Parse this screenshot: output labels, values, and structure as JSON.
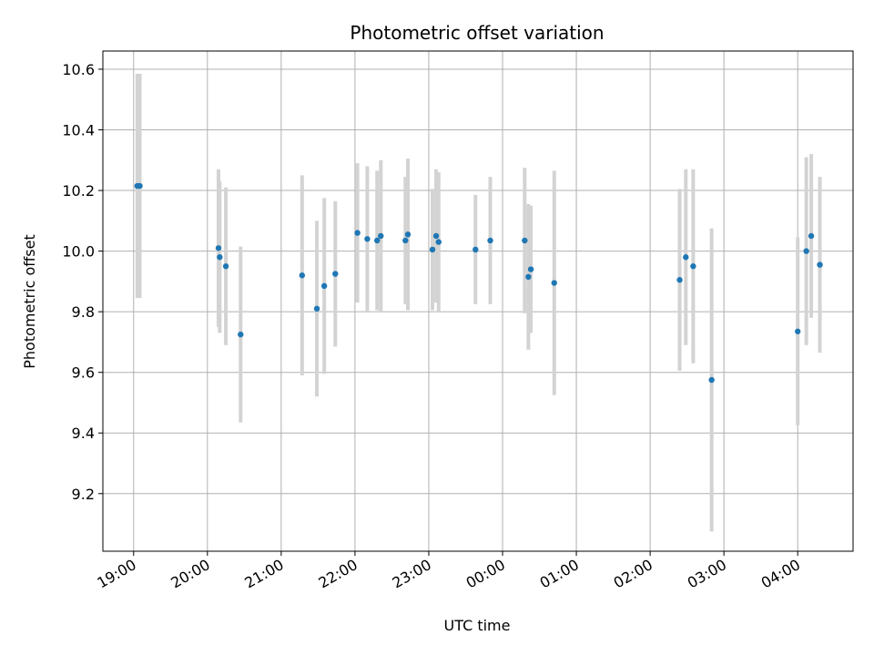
{
  "chart_data": {
    "type": "scatter",
    "title": "Photometric offset variation",
    "xlabel": "UTC time",
    "ylabel": "Photometric offset",
    "x_axis_type": "time",
    "x_ticks": [
      "19:00",
      "20:00",
      "21:00",
      "22:00",
      "23:00",
      "00:00",
      "01:00",
      "02:00",
      "03:00",
      "04:00"
    ],
    "y_ticks": [
      "9.2",
      "9.4",
      "9.6",
      "9.8",
      "10.0",
      "10.2",
      "10.4",
      "10.6"
    ],
    "xlim": [
      "18:35",
      "04:45"
    ],
    "ylim": [
      9.01,
      10.66
    ],
    "grid": true,
    "colors": {
      "marker": "#1f77b4",
      "errorbar": "#d3d3d3",
      "grid": "#b0b0b0"
    },
    "points": [
      {
        "time": "19:03",
        "y": 10.215,
        "err": 0.37
      },
      {
        "time": "19:05",
        "y": 10.215,
        "err": 0.37
      },
      {
        "time": "20:09",
        "y": 10.01,
        "err": 0.26
      },
      {
        "time": "20:10",
        "y": 9.98,
        "err": 0.25
      },
      {
        "time": "20:15",
        "y": 9.95,
        "err": 0.26
      },
      {
        "time": "20:27",
        "y": 9.725,
        "err": 0.29
      },
      {
        "time": "21:17",
        "y": 9.92,
        "err": 0.33
      },
      {
        "time": "21:29",
        "y": 9.81,
        "err": 0.29
      },
      {
        "time": "21:35",
        "y": 9.885,
        "err": 0.29
      },
      {
        "time": "21:44",
        "y": 9.925,
        "err": 0.24
      },
      {
        "time": "22:02",
        "y": 10.06,
        "err": 0.23
      },
      {
        "time": "22:10",
        "y": 10.04,
        "err": 0.24
      },
      {
        "time": "22:18",
        "y": 10.035,
        "err": 0.23
      },
      {
        "time": "22:21",
        "y": 10.05,
        "err": 0.25
      },
      {
        "time": "22:41",
        "y": 10.035,
        "err": 0.21
      },
      {
        "time": "22:43",
        "y": 10.055,
        "err": 0.25
      },
      {
        "time": "23:03",
        "y": 10.005,
        "err": 0.2
      },
      {
        "time": "23:06",
        "y": 10.05,
        "err": 0.22
      },
      {
        "time": "23:08",
        "y": 10.03,
        "err": 0.23
      },
      {
        "time": "23:38",
        "y": 10.005,
        "err": 0.18
      },
      {
        "time": "23:50",
        "y": 10.035,
        "err": 0.21
      },
      {
        "time": "00:18",
        "y": 10.035,
        "err": 0.24
      },
      {
        "time": "00:21",
        "y": 9.915,
        "err": 0.24
      },
      {
        "time": "00:23",
        "y": 9.94,
        "err": 0.21
      },
      {
        "time": "00:42",
        "y": 9.895,
        "err": 0.37
      },
      {
        "time": "02:24",
        "y": 9.905,
        "err": 0.3
      },
      {
        "time": "02:29",
        "y": 9.98,
        "err": 0.29
      },
      {
        "time": "02:35",
        "y": 9.95,
        "err": 0.32
      },
      {
        "time": "02:50",
        "y": 9.575,
        "err": 0.5
      },
      {
        "time": "04:00",
        "y": 9.735,
        "err": 0.31
      },
      {
        "time": "04:07",
        "y": 10.0,
        "err": 0.31
      },
      {
        "time": "04:11",
        "y": 10.05,
        "err": 0.27
      },
      {
        "time": "04:18",
        "y": 9.955,
        "err": 0.29
      }
    ]
  }
}
